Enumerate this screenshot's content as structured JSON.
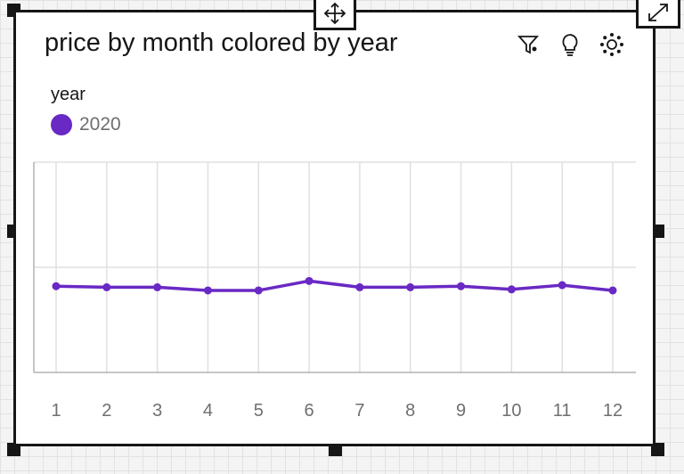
{
  "chart_data": {
    "type": "line",
    "title": "price by month colored by year",
    "legend_title": "year",
    "legend_position": "top-left",
    "categories": [
      "1",
      "2",
      "3",
      "4",
      "5",
      "6",
      "7",
      "8",
      "9",
      "10",
      "11",
      "12"
    ],
    "series": [
      {
        "name": "2020",
        "color": "#6929c4",
        "values": [
          0.82,
          0.81,
          0.81,
          0.78,
          0.78,
          0.87,
          0.81,
          0.81,
          0.82,
          0.79,
          0.83,
          0.78
        ]
      }
    ],
    "ylim": [
      0,
      2
    ],
    "grid": true,
    "xlabel": "",
    "ylabel": ""
  },
  "icons": {
    "move": "move-arrows-icon",
    "expand": "expand-icon",
    "filter": "filter-icon",
    "insight": "lightbulb-icon",
    "settings": "settings-dots-icon"
  }
}
